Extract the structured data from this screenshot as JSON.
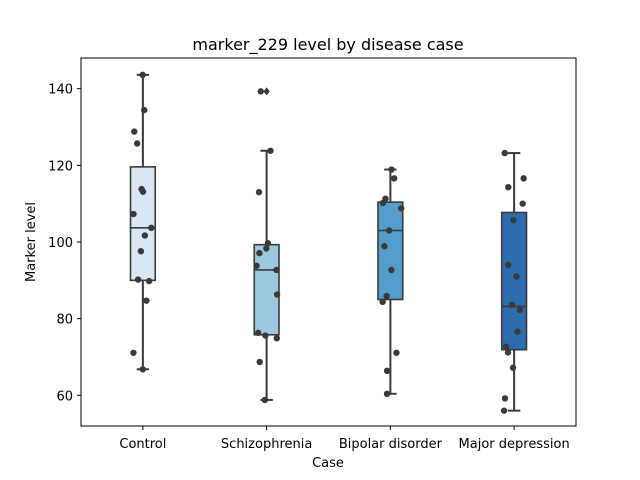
{
  "chart_data": {
    "type": "box",
    "title": "marker_229 level by disease case",
    "xlabel": "Case",
    "ylabel": "Marker level",
    "categories": [
      "Control",
      "Schizophrenia",
      "Bipolar disorder",
      "Major depression"
    ],
    "ylim": [
      52,
      148
    ],
    "yticks": [
      60,
      80,
      100,
      120,
      140
    ],
    "colors": [
      "#d9e7f5",
      "#9cc9e1",
      "#529dcc",
      "#2a6eae"
    ],
    "grid": false,
    "boxes": [
      {
        "category": "Control",
        "whisker_low": 66.8,
        "q1": 90.0,
        "median": 103.7,
        "q3": 119.6,
        "whisker_high": 143.6,
        "outliers": []
      },
      {
        "category": "Schizophrenia",
        "whisker_low": 58.8,
        "q1": 75.8,
        "median": 92.7,
        "q3": 99.3,
        "whisker_high": 123.8,
        "outliers": [
          139.3
        ]
      },
      {
        "category": "Bipolar disorder",
        "whisker_low": 60.4,
        "q1": 85.0,
        "median": 103.0,
        "q3": 110.4,
        "whisker_high": 118.9,
        "outliers": []
      },
      {
        "category": "Major depression",
        "whisker_low": 56.0,
        "q1": 71.9,
        "median": 83.2,
        "q3": 107.7,
        "whisker_high": 123.2,
        "outliers": []
      }
    ],
    "points": [
      {
        "category": "Control",
        "values": [
          143.6,
          134.4,
          128.8,
          125.7,
          113.8,
          113.1,
          107.3,
          103.7,
          101.7,
          97.6,
          90.2,
          89.8,
          84.7,
          71.1,
          66.8
        ]
      },
      {
        "category": "Schizophrenia",
        "values": [
          139.3,
          123.8,
          113.0,
          99.7,
          98.3,
          97.1,
          93.8,
          92.7,
          86.3,
          76.3,
          75.6,
          74.9,
          68.7,
          58.8
        ]
      },
      {
        "category": "Bipolar disorder",
        "values": [
          118.9,
          116.6,
          111.3,
          110.2,
          108.8,
          103.0,
          98.9,
          92.7,
          85.9,
          84.4,
          71.1,
          66.4,
          60.4
        ]
      },
      {
        "category": "Major depression",
        "values": [
          123.2,
          116.6,
          114.3,
          110.0,
          105.7,
          94.0,
          91.0,
          83.6,
          82.3,
          76.6,
          72.7,
          71.2,
          67.2,
          59.2,
          56.0
        ]
      }
    ]
  }
}
